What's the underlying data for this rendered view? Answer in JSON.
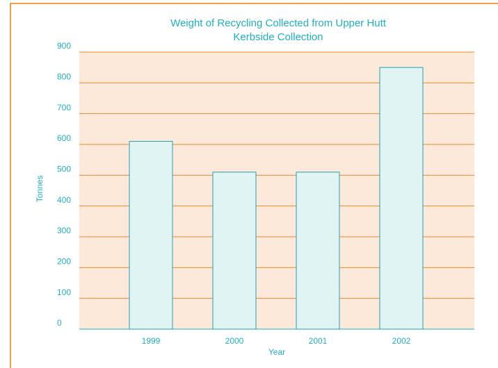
{
  "chart_data": {
    "type": "bar",
    "title": "Weight of Recycling Collected from Upper Hutt Kerbside Collection",
    "x_label": "Year",
    "y_label": "Tonnes",
    "categories": [
      "1999",
      "2000",
      "2001",
      "2002"
    ],
    "values": [
      610,
      510,
      510,
      850
    ],
    "color": "#e0f4f4",
    "ylim": [
      0,
      900
    ],
    "yticks": [
      0,
      100,
      200,
      300,
      400,
      500,
      600,
      700,
      800,
      900
    ],
    "grid": true
  }
}
